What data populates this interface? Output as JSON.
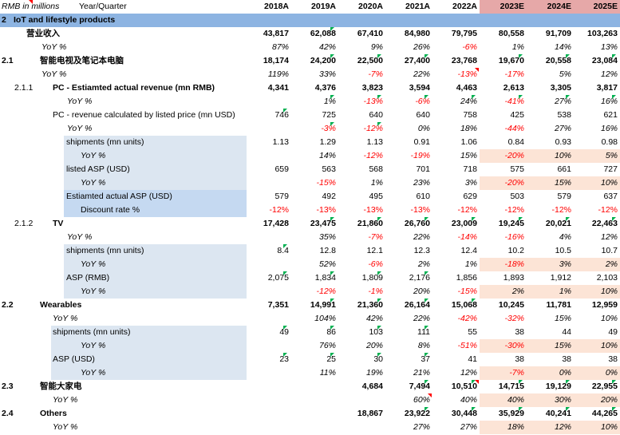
{
  "header": {
    "unit_label": "RMB in millions",
    "period_label": "Year/Quarter",
    "years": [
      "2018A",
      "2019A",
      "2020A",
      "2021A",
      "2022A",
      "2023E",
      "2024E",
      "2025E"
    ]
  },
  "section": {
    "num": "2",
    "title": "IoT and lifestyle products"
  },
  "rows": [
    {
      "num": "",
      "label": "营业收入",
      "indent": 33,
      "style": "bold",
      "vals": [
        "43,817",
        "62,088",
        "67,410",
        "84,980",
        "79,795",
        "80,558",
        "91,709",
        "103,263"
      ]
    },
    {
      "num": "",
      "label": "YoY %",
      "indent": 52,
      "style": "ital",
      "vals": [
        "87%",
        "42%",
        "9%",
        "26%",
        "-6%",
        "1%",
        "14%",
        "13%"
      ]
    },
    {
      "num": "2.1",
      "label": "智能电视及笔记本电脑",
      "indent": 50,
      "style": "bold",
      "vals": [
        "18,174",
        "24,200",
        "22,500",
        "27,400",
        "23,768",
        "19,670",
        "20,558",
        "23,084"
      ]
    },
    {
      "num": "",
      "label": "YoY %",
      "indent": 52,
      "style": "ital",
      "vals": [
        "119%",
        "33%",
        "-7%",
        "22%",
        "-13%",
        "-17%",
        "5%",
        "12%"
      ]
    },
    {
      "num": "2.1.1",
      "label": "PC - Estiamted actual revenue (mn RMB)",
      "indent": 66,
      "style": "bold",
      "vals": [
        "4,341",
        "4,376",
        "3,823",
        "3,594",
        "4,463",
        "2,613",
        "3,305",
        "3,817"
      ]
    },
    {
      "num": "",
      "label": "YoY %",
      "indent": 84,
      "style": "ital",
      "vals": [
        "",
        "1%",
        "-13%",
        "-6%",
        "24%",
        "-41%",
        "27%",
        "16%"
      ]
    },
    {
      "num": "",
      "label": "PC - revenue calculated by listed price (mn USD)",
      "indent": 66,
      "style": "",
      "vals": [
        "746",
        "725",
        "640",
        "640",
        "758",
        "425",
        "538",
        "621"
      ]
    },
    {
      "num": "",
      "label": "YoY %",
      "indent": 84,
      "style": "ital",
      "vals": [
        "",
        "-3%",
        "-12%",
        "0%",
        "18%",
        "-44%",
        "27%",
        "16%"
      ]
    },
    {
      "num": "",
      "label": "shipments (mn units)",
      "indent": 83,
      "style": "",
      "vals": [
        "1.13",
        "1.29",
        "1.13",
        "0.91",
        "1.06",
        "0.84",
        "0.93",
        "0.98"
      ]
    },
    {
      "num": "",
      "label": "YoY %",
      "indent": 101,
      "style": "ital",
      "vals": [
        "",
        "14%",
        "-12%",
        "-19%",
        "15%",
        "-20%",
        "10%",
        "5%"
      ]
    },
    {
      "num": "",
      "label": "listed ASP (USD)",
      "indent": 83,
      "style": "",
      "vals": [
        "659",
        "563",
        "568",
        "701",
        "718",
        "575",
        "661",
        "727"
      ]
    },
    {
      "num": "",
      "label": "YoY %",
      "indent": 101,
      "style": "ital",
      "vals": [
        "",
        "-15%",
        "1%",
        "23%",
        "3%",
        "-20%",
        "15%",
        "10%"
      ]
    },
    {
      "num": "",
      "label": "Estiamted actual ASP (USD)",
      "indent": 83,
      "style": "",
      "vals": [
        "579",
        "492",
        "495",
        "610",
        "629",
        "503",
        "579",
        "637"
      ]
    },
    {
      "num": "",
      "label": "Discount rate %",
      "indent": 101,
      "style": "",
      "vals": [
        "-12%",
        "-13%",
        "-13%",
        "-13%",
        "-12%",
        "-12%",
        "-12%",
        "-12%"
      ]
    },
    {
      "num": "2.1.2",
      "label": "TV",
      "indent": 66,
      "style": "bold",
      "vals": [
        "17,428",
        "23,475",
        "21,860",
        "26,760",
        "23,009",
        "19,245",
        "20,021",
        "22,463"
      ]
    },
    {
      "num": "",
      "label": "YoY %",
      "indent": 84,
      "style": "ital",
      "vals": [
        "",
        "35%",
        "-7%",
        "22%",
        "-14%",
        "-16%",
        "4%",
        "12%"
      ]
    },
    {
      "num": "",
      "label": "shipments (mn units)",
      "indent": 83,
      "style": "",
      "vals": [
        "8.4",
        "12.8",
        "12.1",
        "12.3",
        "12.4",
        "10.2",
        "10.5",
        "10.7"
      ]
    },
    {
      "num": "",
      "label": "YoY %",
      "indent": 101,
      "style": "ital",
      "vals": [
        "",
        "52%",
        "-6%",
        "2%",
        "1%",
        "-18%",
        "3%",
        "2%"
      ]
    },
    {
      "num": "",
      "label": "ASP (RMB)",
      "indent": 83,
      "style": "",
      "vals": [
        "2,075",
        "1,834",
        "1,809",
        "2,176",
        "1,856",
        "1,893",
        "1,912",
        "2,103"
      ]
    },
    {
      "num": "",
      "label": "YoY %",
      "indent": 101,
      "style": "ital",
      "vals": [
        "",
        "-12%",
        "-1%",
        "20%",
        "-15%",
        "2%",
        "1%",
        "10%"
      ]
    },
    {
      "num": "2.2",
      "label": "Wearables",
      "indent": 50,
      "style": "bold",
      "vals": [
        "7,351",
        "14,991",
        "21,360",
        "26,164",
        "15,068",
        "10,245",
        "11,781",
        "12,959"
      ]
    },
    {
      "num": "",
      "label": "YoY %",
      "indent": 66,
      "style": "ital",
      "vals": [
        "",
        "104%",
        "42%",
        "22%",
        "-42%",
        "-32%",
        "15%",
        "10%"
      ]
    },
    {
      "num": "",
      "label": "shipments (mn units)",
      "indent": 66,
      "style": "",
      "vals": [
        "49",
        "86",
        "103",
        "111",
        "55",
        "38",
        "44",
        "49"
      ]
    },
    {
      "num": "",
      "label": "YoY %",
      "indent": 101,
      "style": "ital",
      "vals": [
        "",
        "76%",
        "20%",
        "8%",
        "-51%",
        "-30%",
        "15%",
        "10%"
      ]
    },
    {
      "num": "",
      "label": "ASP (USD)",
      "indent": 66,
      "style": "",
      "vals": [
        "23",
        "25",
        "30",
        "37",
        "41",
        "38",
        "38",
        "38"
      ]
    },
    {
      "num": "",
      "label": "YoY %",
      "indent": 101,
      "style": "ital",
      "vals": [
        "",
        "11%",
        "19%",
        "21%",
        "12%",
        "-7%",
        "0%",
        "0%"
      ]
    },
    {
      "num": "2.3",
      "label": "智能大家电",
      "indent": 50,
      "style": "bold",
      "vals": [
        "",
        "",
        "4,684",
        "7,494",
        "10,510",
        "14,715",
        "19,129",
        "22,955"
      ]
    },
    {
      "num": "",
      "label": "YoY %",
      "indent": 66,
      "style": "ital",
      "vals": [
        "",
        "",
        "",
        "60%",
        "40%",
        "40%",
        "30%",
        "20%"
      ]
    },
    {
      "num": "2.4",
      "label": "Others",
      "indent": 50,
      "style": "bold",
      "vals": [
        "",
        "",
        "18,867",
        "23,922",
        "30,448",
        "35,929",
        "40,241",
        "44,265"
      ]
    },
    {
      "num": "",
      "label": "YoY %",
      "indent": 66,
      "style": "ital",
      "vals": [
        "",
        "",
        "",
        "27%",
        "27%",
        "18%",
        "12%",
        "10%"
      ]
    }
  ]
}
